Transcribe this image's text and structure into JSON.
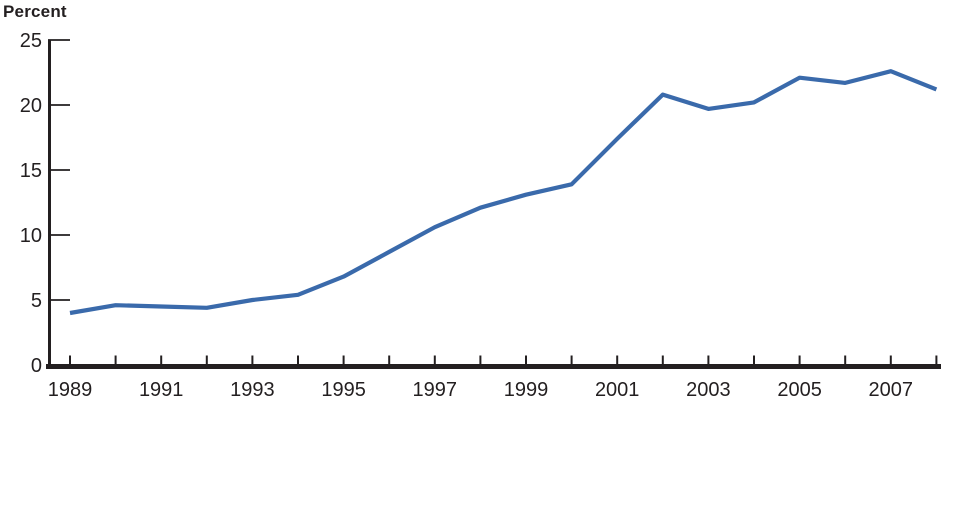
{
  "chart_data": {
    "type": "line",
    "title": "",
    "ylabel": "Percent",
    "xlabel": "",
    "x": [
      1989,
      1990,
      1991,
      1992,
      1993,
      1994,
      1995,
      1996,
      1997,
      1998,
      1999,
      2000,
      2001,
      2002,
      2003,
      2004,
      2005,
      2006,
      2007,
      2008
    ],
    "series": [
      {
        "name": "Percent",
        "color": "#3a6aab",
        "values": [
          4.0,
          4.6,
          4.5,
          4.4,
          5.0,
          5.4,
          6.8,
          8.7,
          10.6,
          12.1,
          13.1,
          13.9,
          17.4,
          20.8,
          19.7,
          20.2,
          22.1,
          21.7,
          22.6,
          21.2
        ]
      }
    ],
    "ylim": [
      0,
      25
    ],
    "yticks": [
      0,
      5,
      10,
      15,
      20,
      25
    ],
    "xtick_labels": [
      "1989",
      "1991",
      "1993",
      "1995",
      "1997",
      "1999",
      "2001",
      "2003",
      "2005",
      "2007"
    ],
    "grid": "off",
    "legend": "none",
    "markers": "none"
  },
  "colors": {
    "axis": "#231f20",
    "tick": "#231f20",
    "text": "#231f20",
    "line": "#3a6aab",
    "background": "#ffffff"
  }
}
